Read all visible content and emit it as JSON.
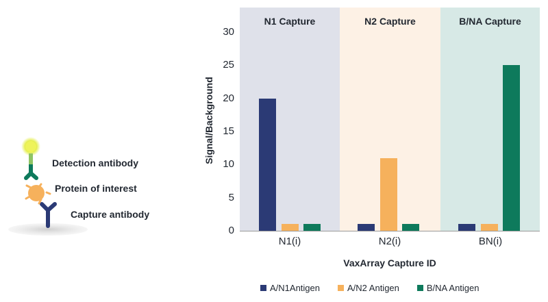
{
  "diagram": {
    "labels": {
      "detection": "Detection antibody",
      "protein": "Protein of interest",
      "capture": "Capture antibody"
    },
    "colors": {
      "detection_antibody": "#0e7a5c",
      "glow": "#e4ee4a",
      "protein": "#f6b15c",
      "capture_antibody": "#2b3a75",
      "surface": "#d9d9d9"
    }
  },
  "chart_data": {
    "type": "bar",
    "title": "",
    "xlabel": "VaxArray Capture ID",
    "ylabel": "Signal/Background",
    "ylim": [
      0,
      30
    ],
    "yticks": [
      0,
      5,
      10,
      15,
      20,
      25,
      30
    ],
    "categories": [
      "N1(i)",
      "N2(i)",
      "BN(i)"
    ],
    "panels": [
      {
        "title": "N1 Capture",
        "color": "#dfe1ea"
      },
      {
        "title": "N2 Capture",
        "color": "#fdf1e5"
      },
      {
        "title": "B/NA Capture",
        "color": "#d7e9e6"
      }
    ],
    "series": [
      {
        "name": "A/N1Antigen",
        "color": "#2b3a75",
        "values": [
          20,
          1,
          1
        ]
      },
      {
        "name": "A/N2 Antigen",
        "color": "#f6b15c",
        "values": [
          1,
          11,
          1
        ]
      },
      {
        "name": "B/NA Antigen",
        "color": "#0e7a5c",
        "values": [
          1,
          1,
          25
        ]
      }
    ],
    "grid": false,
    "legend_position": "bottom"
  }
}
